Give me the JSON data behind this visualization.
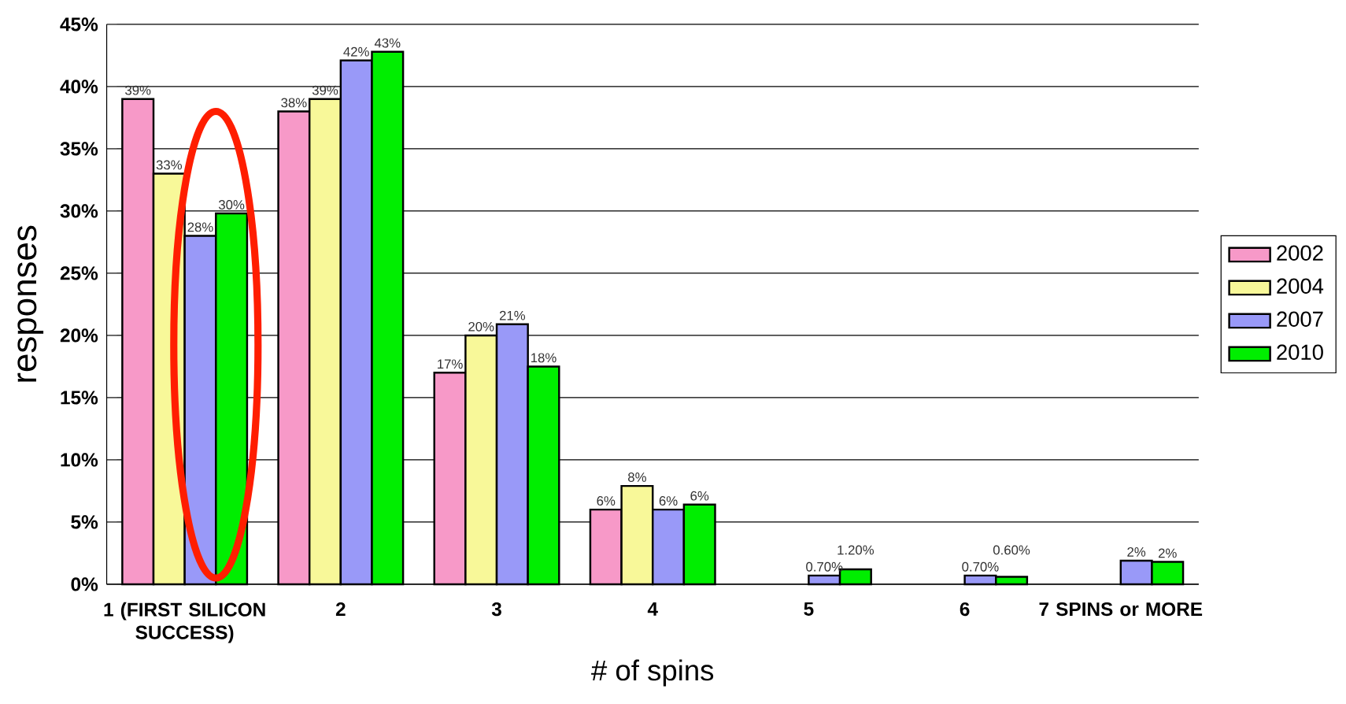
{
  "chart_data": {
    "type": "bar",
    "xlabel": "# of spins",
    "ylabel": "responses",
    "categories": [
      "1 (FIRST SILICON SUCCESS)",
      "2",
      "3",
      "4",
      "5",
      "6",
      "7 SPINS or MORE"
    ],
    "series": [
      {
        "name": "2002",
        "color": "#f799c8",
        "values": [
          39,
          38,
          17,
          6,
          null,
          null,
          null
        ],
        "value_labels": [
          "39%",
          "38%",
          "17%",
          "6%",
          null,
          null,
          null
        ]
      },
      {
        "name": "2004",
        "color": "#f8f899",
        "values": [
          33,
          39,
          20,
          7.9,
          null,
          null,
          null
        ],
        "value_labels": [
          "33%",
          "39%",
          "20%",
          "8%",
          null,
          null,
          null
        ]
      },
      {
        "name": "2007",
        "color": "#9999f8",
        "values": [
          28,
          42.1,
          20.9,
          6,
          0.7,
          0.7,
          1.9
        ],
        "value_labels": [
          "28%",
          "42%",
          "21%",
          "6%",
          "0.70%",
          "0.70%",
          "2%"
        ]
      },
      {
        "name": "2010",
        "color": "#00ee00",
        "values": [
          29.8,
          42.8,
          17.5,
          6.4,
          1.2,
          0.6,
          1.8
        ],
        "value_labels": [
          "30%",
          "43%",
          "18%",
          "6%",
          "1.20%",
          "0.60%",
          "2%"
        ]
      }
    ],
    "ylim": [
      0,
      45
    ],
    "yticks": [
      {
        "value": 0,
        "label": "0%"
      },
      {
        "value": 5,
        "label": "5%"
      },
      {
        "value": 10,
        "label": "10%"
      },
      {
        "value": 15,
        "label": "15%"
      },
      {
        "value": 20,
        "label": "20%"
      },
      {
        "value": 25,
        "label": "25%"
      },
      {
        "value": 30,
        "label": "30%"
      },
      {
        "value": 35,
        "label": "35%"
      },
      {
        "value": 40,
        "label": "40%"
      },
      {
        "value": 45,
        "label": "45%"
      }
    ],
    "grid": "y",
    "legend": "right"
  }
}
